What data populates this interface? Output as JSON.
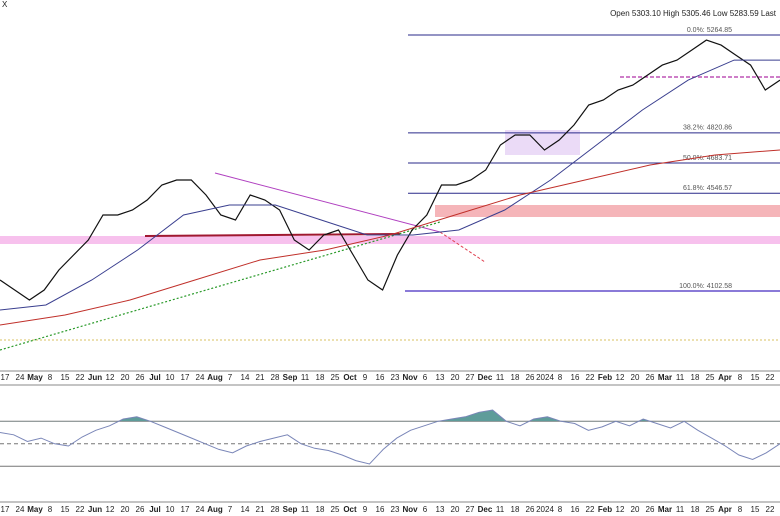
{
  "chart_data": {
    "type": "line",
    "symbol": "X",
    "header": "Open 5303.10 High 5305.46 Low 5283.59 Last",
    "ylim": [
      3812,
      5424
    ],
    "series": [
      {
        "color": "#111111",
        "values": [
          4152.5,
          4107.1,
          4061.7,
          4107.1,
          4197.9,
          4266.0,
          4334.1,
          4447.6,
          4447.6,
          4470.3,
          4515.7,
          4583.8,
          4606.5,
          4606.5,
          4538.4,
          4447.6,
          4424.9,
          4538.4,
          4515.7,
          4470.3,
          4334.1,
          4288.7,
          4356.8,
          4379.5,
          4266.0,
          4152.5,
          4107.1,
          4266.0,
          4379.5,
          4447.6,
          4583.8,
          4583.8,
          4606.5,
          4651.9,
          4765.4,
          4810.8,
          4810.8,
          4742.7,
          4788.1,
          4856.2,
          4947.0,
          4969.7,
          5015.1,
          5037.8,
          5083.2,
          5128.6,
          5151.3,
          5196.7,
          5242.1,
          5219.4,
          5174.0,
          5128.6,
          5015.1,
          5060.5
        ]
      },
      {
        "color": "#3a3f8f",
        "values": [
          4016.3,
          4039.0,
          4152.5,
          4288.7,
          4447.6,
          4493.0,
          4493.0,
          4424.9,
          4356.8,
          4356.8,
          4379.5,
          4470.3,
          4606.5,
          4765.4,
          4924.3,
          5060.5,
          5151.3,
          5151.3
        ]
      },
      {
        "color": "#c0302a",
        "values": [
          3948.2,
          3993.6,
          4061.7,
          4152.5,
          4243.3,
          4288.7,
          4356.8,
          4447.6,
          4538.4,
          4606.5,
          4674.6,
          4720.0,
          4742.7
        ]
      }
    ],
    "fib_levels": [
      {
        "value": 5264.85,
        "label": "0.0%: 5264.85"
      },
      {
        "value": 4820.86,
        "label": "38.2%: 4820.86"
      },
      {
        "value": 4683.71,
        "label": "50.0%: 4683.71"
      },
      {
        "value": 4546.57,
        "label": "61.8%: 4546.57"
      },
      {
        "value": 4102.58,
        "label": "100.0%: 4102.58"
      }
    ],
    "x_labels": [
      "17",
      "24",
      "May",
      "8",
      "15",
      "22",
      "Jun",
      "12",
      "20",
      "26",
      "Jul",
      "10",
      "17",
      "24",
      "Aug",
      "7",
      "14",
      "21",
      "28",
      "Sep",
      "11",
      "18",
      "25",
      "Oct",
      "9",
      "16",
      "23",
      "Nov",
      "6",
      "13",
      "20",
      "27",
      "Dec",
      "11",
      "18",
      "26",
      "2024",
      "8",
      "16",
      "22",
      "Feb",
      "12",
      "20",
      "26",
      "Mar",
      "11",
      "18",
      "25",
      "Apr",
      "8",
      "15",
      "22"
    ],
    "indicator": {
      "color": "#7a86b8",
      "fill": "#5e9c9a",
      "ylim": [
        0,
        100
      ],
      "levels": [
        30,
        50,
        70
      ],
      "values": [
        60,
        58,
        52,
        55,
        50,
        48,
        56,
        62,
        66,
        72,
        74,
        70,
        65,
        60,
        55,
        50,
        45,
        42,
        48,
        52,
        55,
        58,
        50,
        46,
        44,
        40,
        35,
        32,
        45,
        55,
        62,
        66,
        70,
        72,
        74,
        78,
        80,
        70,
        66,
        72,
        74,
        70,
        68,
        62,
        65,
        70,
        66,
        72,
        68,
        64,
        70,
        62,
        55,
        48,
        40,
        36,
        42,
        50
      ]
    }
  }
}
